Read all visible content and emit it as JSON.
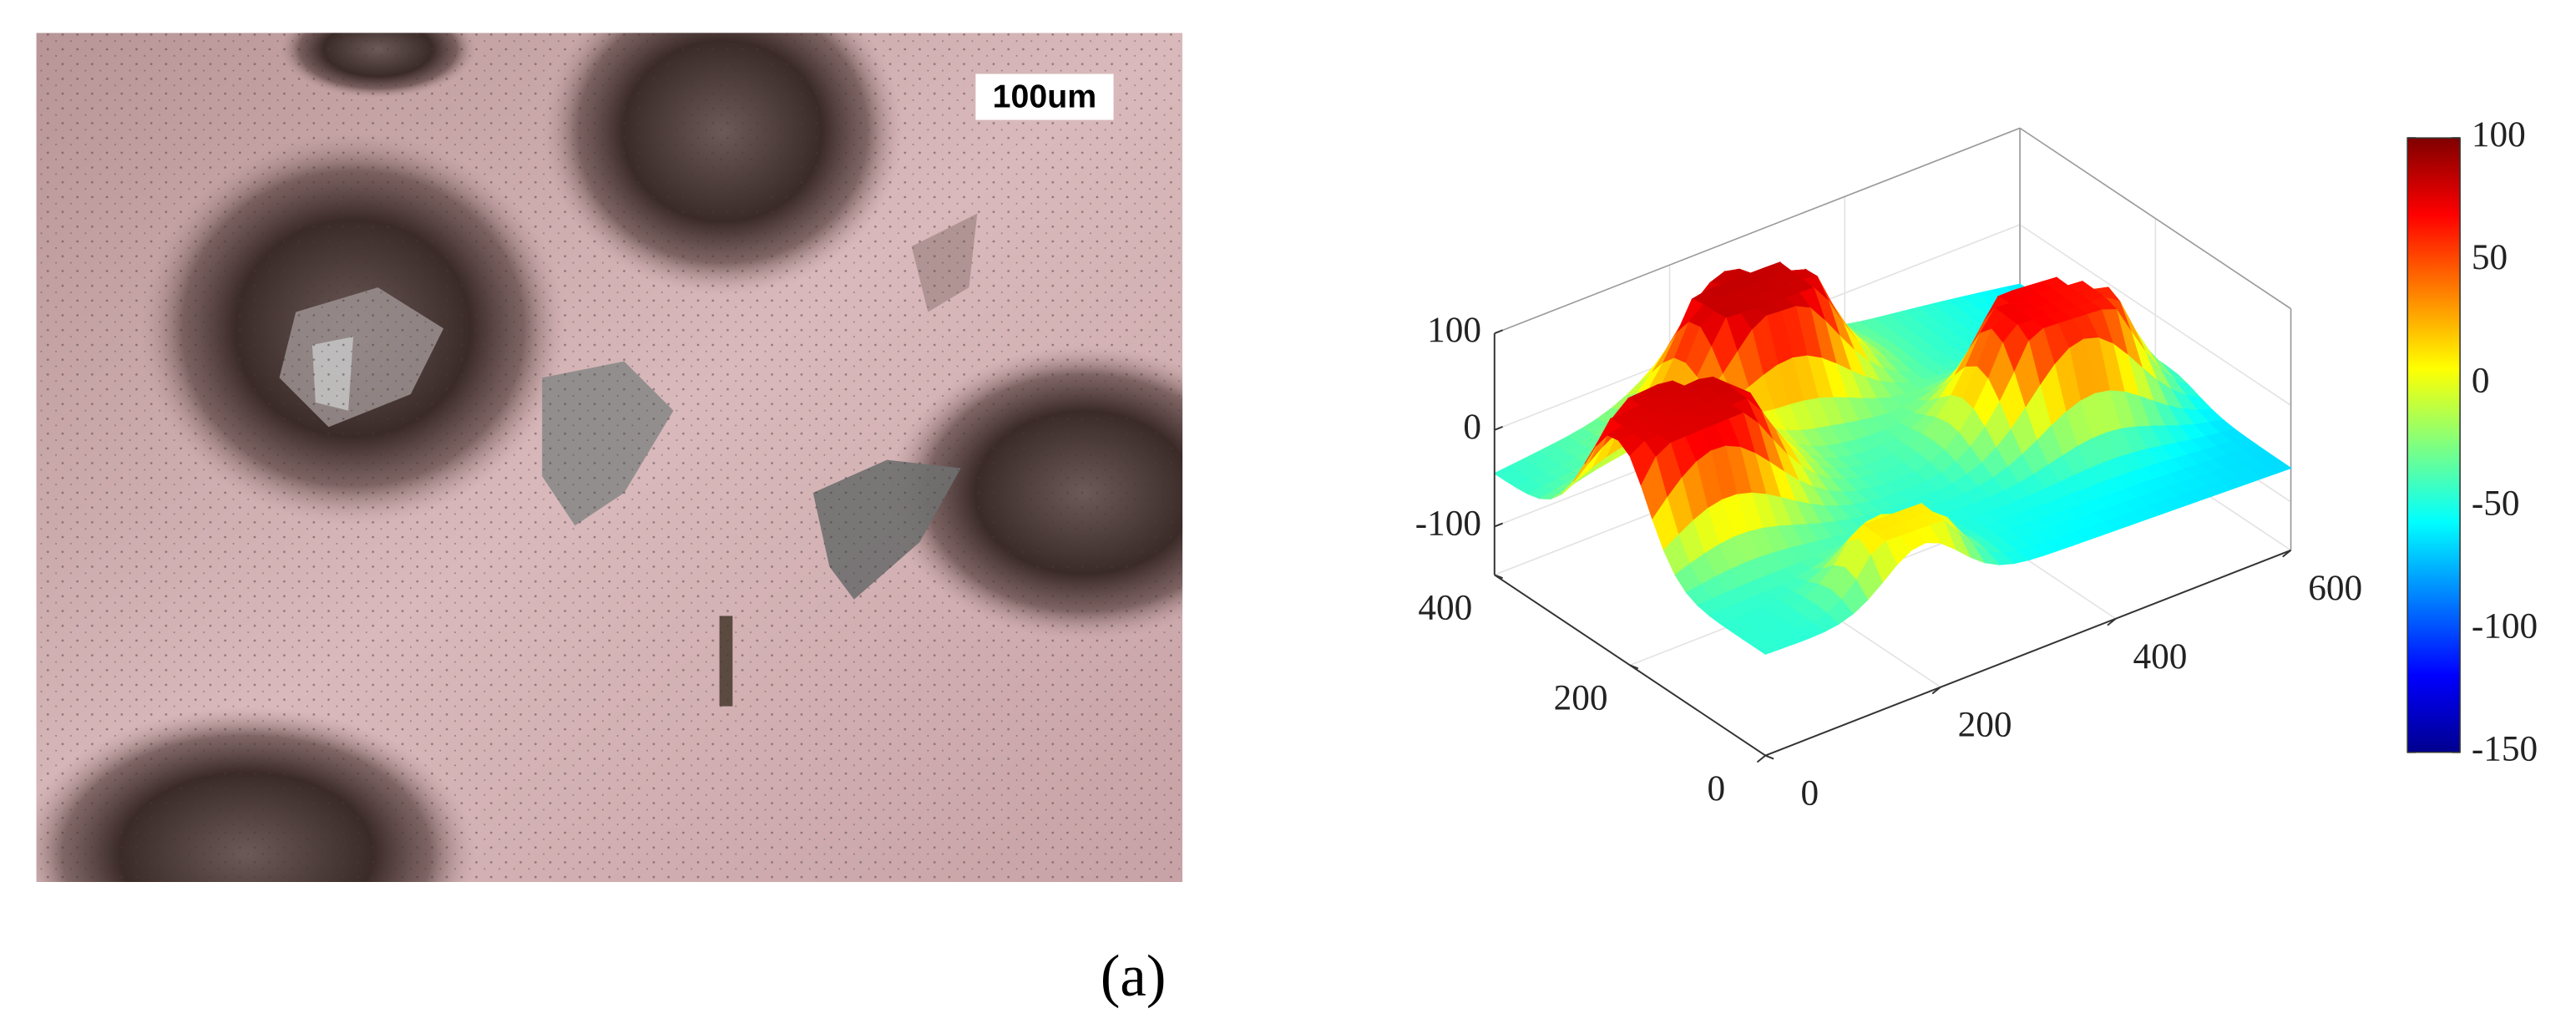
{
  "figure_label": "(a)",
  "micrograph": {
    "scale_label": "100um"
  },
  "surface_plot": {
    "xlim": [
      0,
      600
    ],
    "xticks": [
      0,
      200,
      400,
      600
    ],
    "ylim": [
      0,
      400
    ],
    "yticks": [
      0,
      200,
      400
    ],
    "zlim": [
      -150,
      100
    ],
    "zticks": [
      -100,
      0,
      100
    ],
    "colorbar": {
      "lim": [
        -150,
        100
      ],
      "ticks": [
        -150,
        -100,
        -50,
        0,
        50,
        100
      ]
    }
  }
}
